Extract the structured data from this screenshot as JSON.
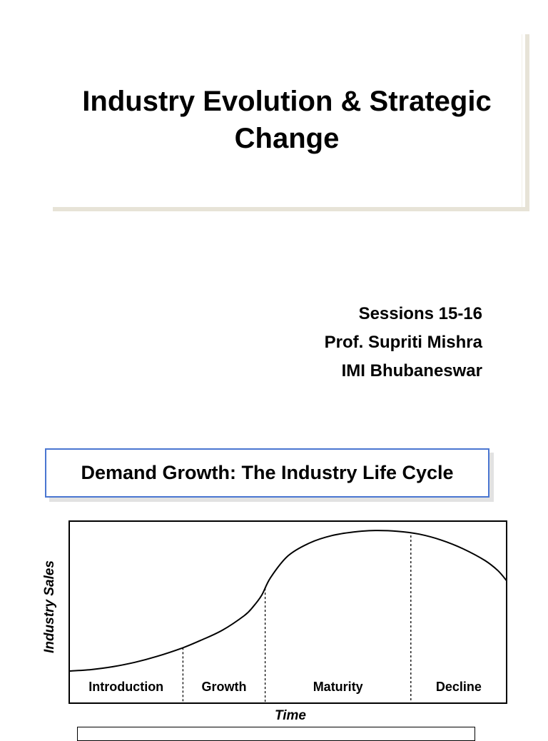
{
  "slide": {
    "title": "Industry Evolution & Strategic Change",
    "sessions": "Sessions 15-16",
    "professor": "Prof. Supriti Mishra",
    "institute": "IMI Bhubaneswar"
  },
  "section": {
    "title": "Demand Growth: The Industry Life Cycle"
  },
  "chart_data": {
    "type": "line",
    "title": "",
    "xlabel": "Time",
    "ylabel": "Industry Sales",
    "stages": [
      "Introduction",
      "Growth",
      "Maturity",
      "Decline"
    ],
    "stage_boundaries": [
      0.26,
      0.448,
      0.781
    ],
    "x": [
      0,
      0.05,
      0.1,
      0.15,
      0.2,
      0.26,
      0.3,
      0.35,
      0.4,
      0.42,
      0.44,
      0.46,
      0.5,
      0.55,
      0.6,
      0.65,
      0.7,
      0.75,
      0.8,
      0.85,
      0.9,
      0.95,
      0.98,
      1.0
    ],
    "values": [
      0,
      1,
      3,
      6,
      10,
      16,
      21,
      28,
      38,
      44,
      52,
      64,
      79,
      88,
      93,
      95.5,
      96.5,
      96,
      94,
      90,
      84,
      76,
      69,
      62
    ],
    "xlim": [
      0,
      1
    ],
    "ylim": [
      0,
      100
    ],
    "grid": false,
    "legend": "none"
  }
}
